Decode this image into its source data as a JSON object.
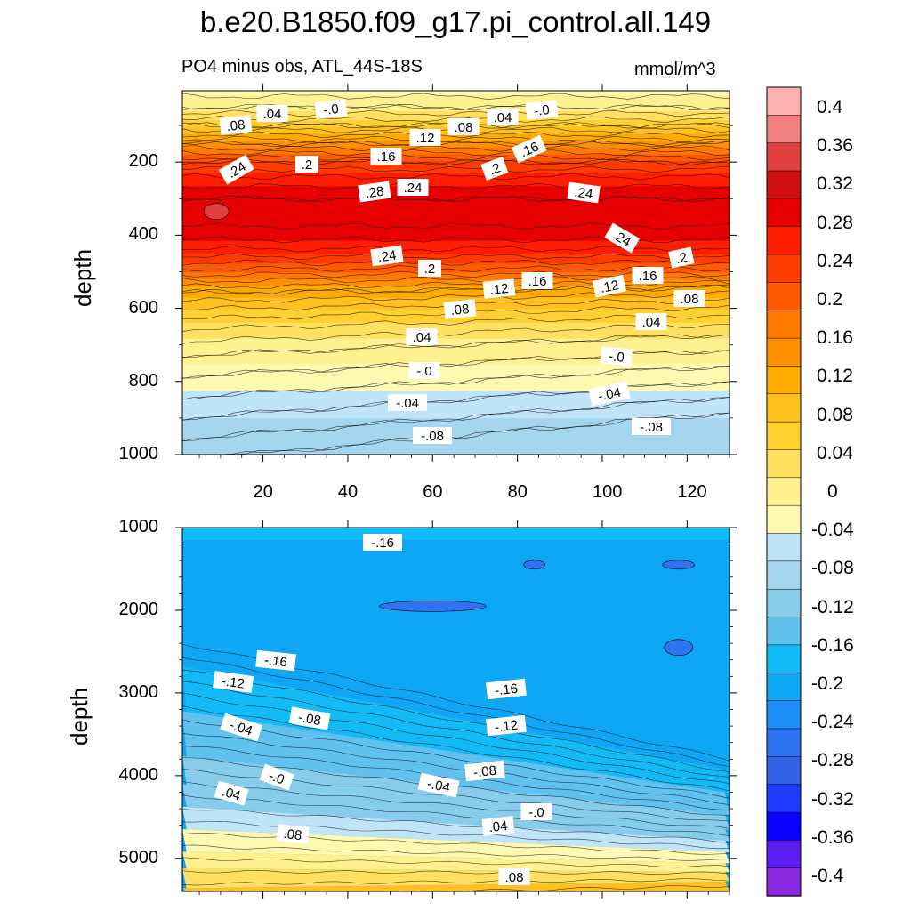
{
  "chart_data": [
    {
      "type": "contour",
      "panel": "upper",
      "title": "b.e20.B1850.f09_g17.pi_control.all.149",
      "subtitle": "PO4 minus obs, ATL_44S-18S",
      "units": "mmol/m^3",
      "ylabel": "depth",
      "xlabel": "",
      "xlim": [
        1,
        130
      ],
      "ylim": [
        1000,
        5
      ],
      "xticks": [
        "20",
        "40",
        "60",
        "80",
        "100",
        "120"
      ],
      "yticks": [
        "200",
        "400",
        "600",
        "800",
        "1000"
      ],
      "profile": {
        "depth": [
          5,
          50,
          100,
          150,
          200,
          250,
          300,
          350,
          400,
          450,
          500,
          550,
          600,
          650,
          700,
          750,
          800,
          850,
          900,
          950,
          1000
        ],
        "value": [
          -0.01,
          0.02,
          0.08,
          0.16,
          0.24,
          0.29,
          0.32,
          0.33,
          0.31,
          0.27,
          0.21,
          0.14,
          0.09,
          0.05,
          0.02,
          0.0,
          -0.02,
          -0.04,
          -0.06,
          -0.08,
          -0.09
        ]
      },
      "contour_labels": [
        ".08",
        ".04",
        "-.0",
        ".08",
        ".04",
        "-.0",
        ".12",
        ".16",
        ".24",
        ".2",
        ".16",
        ".2",
        ".28",
        ".24",
        ".24",
        ".24",
        ".24",
        ".2",
        ".2",
        ".12",
        ".16",
        ".12",
        ".16",
        ".08",
        ".08",
        ".04",
        ".04",
        "-.0",
        "-.0",
        "-.04",
        "-.04",
        "-.08",
        "-.08"
      ]
    },
    {
      "type": "contour",
      "panel": "lower",
      "ylabel": "depth",
      "xlabel": "",
      "xlim": [
        1,
        130
      ],
      "ylim": [
        5400,
        1000
      ],
      "yticks": [
        "1000",
        "2000",
        "3000",
        "4000",
        "5000"
      ],
      "contour_labels": [
        "-.16",
        "-.16",
        "-.12",
        "-.16",
        "-.08",
        "-.04",
        "-.12",
        "-.08",
        "-.0",
        "-.04",
        ".04",
        "-.0",
        ".08",
        ".04",
        ".08"
      ]
    },
    {
      "type": "colorbar",
      "levels": [
        -0.4,
        -0.36,
        -0.32,
        -0.28,
        -0.24,
        -0.2,
        -0.16,
        -0.12,
        -0.08,
        -0.04,
        0,
        0.04,
        0.08,
        0.12,
        0.16,
        0.2,
        0.24,
        0.28,
        0.32,
        0.36,
        0.4
      ],
      "labels": [
        "0.4",
        "0.36",
        "0.32",
        "0.28",
        "0.24",
        "0.2",
        "0.16",
        "0.12",
        "0.08",
        "0.04",
        "0",
        "-0.04",
        "-0.08",
        "-0.12",
        "-0.16",
        "-0.2",
        "-0.24",
        "-0.28",
        "-0.32",
        "-0.36",
        "-0.4"
      ],
      "colors": [
        "#8a28e0",
        "#5c1ef0",
        "#0a00ff",
        "#1e3cff",
        "#3462e6",
        "#2e74f0",
        "#1e8cf5",
        "#0ea6f5",
        "#12baf8",
        "#60c0ee",
        "#88cceb",
        "#a6d6ee",
        "#c0e4f8",
        "#fff8b0",
        "#fff090",
        "#ffe060",
        "#ffd030",
        "#ffc020",
        "#ffaa00",
        "#ff9000",
        "#ff7800",
        "#ff5a00",
        "#ff3c00",
        "#ff1e00",
        "#e60000",
        "#d01010",
        "#e04040",
        "#f08080",
        "#ffb0b0"
      ]
    }
  ]
}
